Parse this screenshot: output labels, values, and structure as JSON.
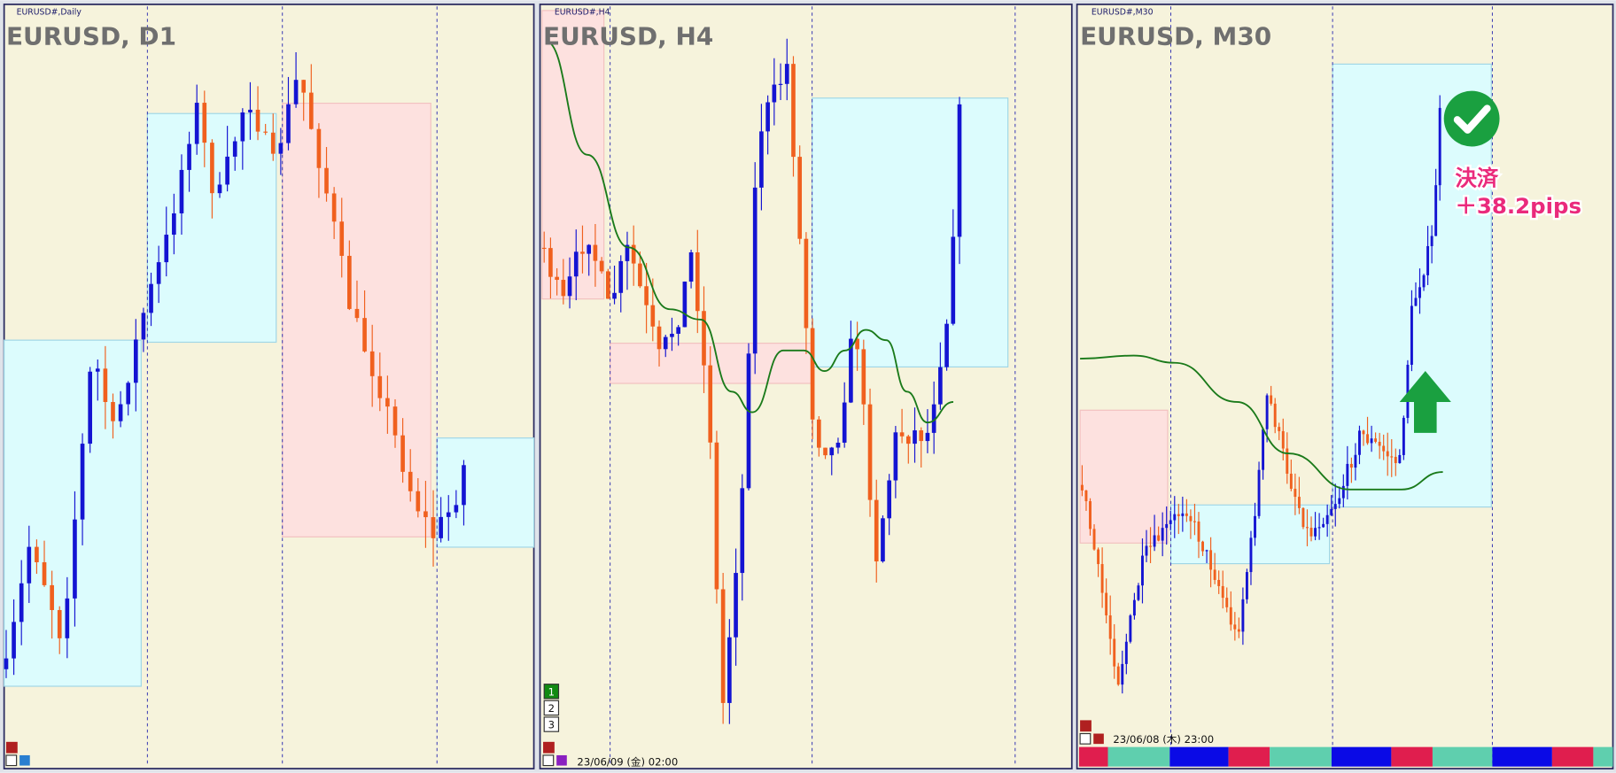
{
  "panels": [
    {
      "symbol": "EURUSD#,Daily",
      "title": "EURUSD, D1"
    },
    {
      "symbol": "EURUSD#,H4",
      "title": "EURUSD, H4",
      "orders": [
        "1",
        "2",
        "3"
      ],
      "date": "23/06/09 (金) 02:00"
    },
    {
      "symbol": "EURUSD#,M30",
      "title": "EURUSD, M30",
      "date": "23/06/08 (木) 23:00",
      "result": {
        "label": "決済",
        "pips": "＋38.2pips"
      }
    }
  ]
}
